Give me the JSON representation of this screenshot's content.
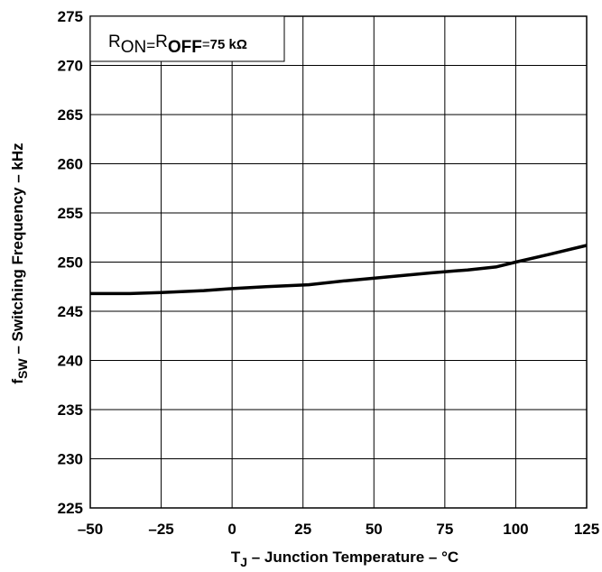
{
  "chart_data": {
    "type": "line",
    "annotation": {
      "r1": "R",
      "r1_sub": "ON",
      "eq1": "=",
      "r2": "R",
      "r2_sub": "OFF",
      "eq2": "=",
      "value": "75 kΩ"
    },
    "xlabel": {
      "main": "T",
      "sub": "J",
      "rest": " –  Junction Temperature – °C"
    },
    "ylabel": {
      "main": "f",
      "sub": "SW",
      "rest": " – Switching Frequency – kHz"
    },
    "xlim": [
      -50,
      125
    ],
    "ylim": [
      225,
      275
    ],
    "x_ticks": [
      -50,
      -25,
      0,
      25,
      50,
      75,
      100,
      125
    ],
    "y_ticks": [
      225,
      230,
      235,
      240,
      245,
      250,
      255,
      260,
      265,
      270,
      275
    ],
    "x_tick_labels": [
      "–50",
      "–25",
      "0",
      "25",
      "50",
      "75",
      "100",
      "125"
    ],
    "y_tick_labels": [
      "225",
      "230",
      "235",
      "240",
      "245",
      "250",
      "255",
      "260",
      "265",
      "270",
      "275"
    ],
    "grid": true,
    "legend": "none",
    "series": [
      {
        "x": [
          -50,
          -36,
          -25,
          -10,
          0,
          12,
          27,
          40,
          55,
          70,
          83,
          93,
          100,
          112,
          125
        ],
        "y": [
          246.8,
          246.8,
          246.9,
          247.1,
          247.3,
          247.5,
          247.7,
          248.1,
          248.5,
          248.9,
          249.2,
          249.5,
          250.0,
          250.8,
          251.7
        ]
      }
    ]
  }
}
